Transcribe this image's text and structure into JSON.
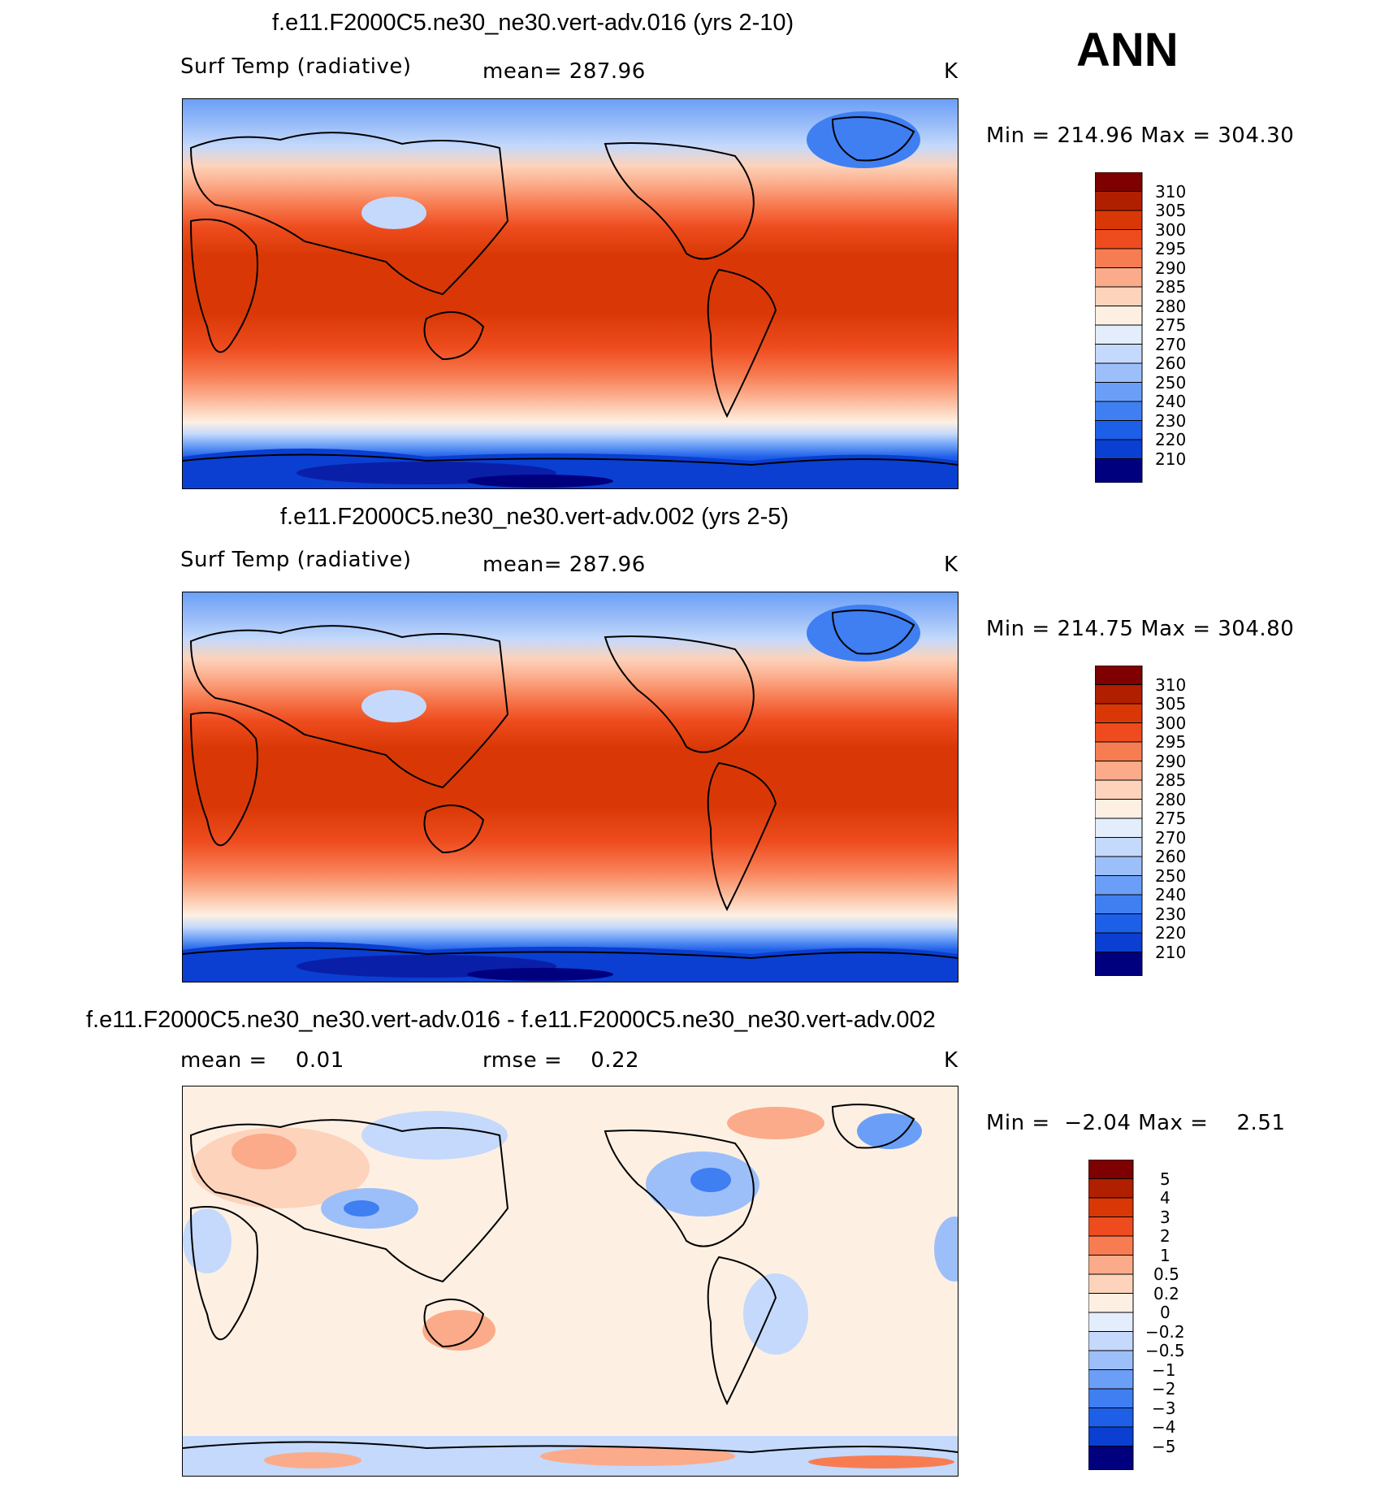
{
  "season": "ANN",
  "colors": {
    "abs_levels": [
      "#00007f",
      "#0a1fa8",
      "#0a3fd2",
      "#1e5fe8",
      "#3f7ff2",
      "#6b9ff7",
      "#9dbff9",
      "#c4d9fb",
      "#e3edfc",
      "#fdf0e3",
      "#fdd3bb",
      "#fbab89",
      "#f87c52",
      "#ee4c1e",
      "#d93806",
      "#b01f00",
      "#7f0000"
    ],
    "diff_levels": [
      "#00007f",
      "#0a1fa8",
      "#0a3fd2",
      "#1e5fe8",
      "#3f7ff2",
      "#6b9ff7",
      "#9dbff9",
      "#c4d9fb",
      "#e3edfc",
      "#fdf0e3",
      "#fdd3bb",
      "#fbab89",
      "#f87c52",
      "#ee4c1e",
      "#d93806",
      "#b01f00",
      "#7f0000"
    ]
  },
  "panels": [
    {
      "case_title": "f.e11.F2000C5.ne30_ne30.vert-adv.016 (yrs 2-10)",
      "variable": "Surf Temp (radiative)",
      "stat_text": "mean= 287.96",
      "units": "K",
      "minmax_text": "Min = 214.96 Max = 304.30",
      "colorbar_labels": [
        "310",
        "305",
        "300",
        "295",
        "290",
        "285",
        "280",
        "275",
        "270",
        "260",
        "250",
        "240",
        "230",
        "220",
        "210"
      ]
    },
    {
      "case_title": "f.e11.F2000C5.ne30_ne30.vert-adv.002 (yrs 2-5)",
      "variable": "Surf Temp (radiative)",
      "stat_text": "mean= 287.96",
      "units": "K",
      "minmax_text": "Min = 214.75 Max = 304.80",
      "colorbar_labels": [
        "310",
        "305",
        "300",
        "295",
        "290",
        "285",
        "280",
        "275",
        "270",
        "260",
        "250",
        "240",
        "230",
        "220",
        "210"
      ]
    },
    {
      "case_title": "f.e11.F2000C5.ne30_ne30.vert-adv.016 - f.e11.F2000C5.ne30_ne30.vert-adv.002",
      "stat_left": "mean =    0.01",
      "stat_right": "rmse =    0.22",
      "units": "K",
      "minmax_text": "Min =  −2.04 Max =    2.51",
      "colorbar_labels": [
        "5",
        "4",
        "3",
        "2",
        "1",
        "0.5",
        "0.2",
        "0",
        "−0.2",
        "−0.5",
        "−1",
        "−2",
        "−3",
        "−4",
        "−5"
      ]
    }
  ]
}
